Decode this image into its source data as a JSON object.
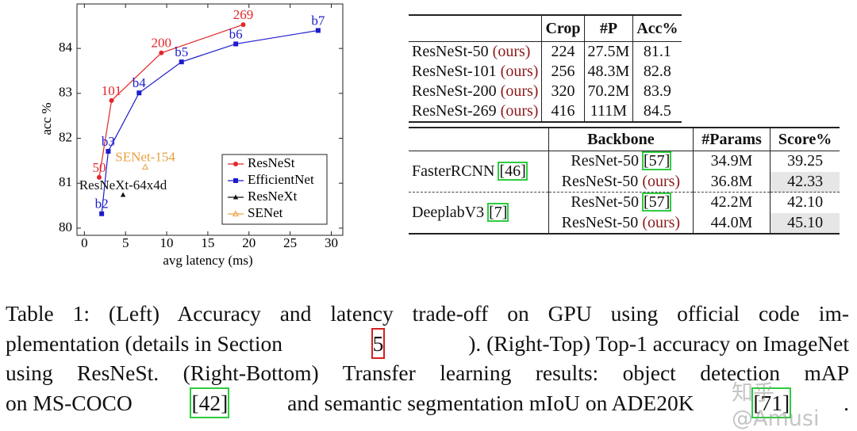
{
  "chart_data": {
    "type": "scatter-line",
    "x_label": "avg latency (ms)",
    "y_label": "acc %",
    "xlim": [
      -0.9,
      31.4
    ],
    "ylim": [
      79.84,
      84.99
    ],
    "xticks": [
      0,
      5,
      10,
      15,
      20,
      25,
      30
    ],
    "yticks": [
      80,
      81,
      82,
      83,
      84
    ],
    "legend": "lower right",
    "series": [
      {
        "name": "ResNeSt",
        "color": "#e3262b",
        "marker": "circle",
        "line": true,
        "x": [
          1.8,
          3.3,
          9.35,
          19.3
        ],
        "values": [
          81.13,
          82.84,
          83.9,
          84.53
        ],
        "point_labels": [
          "50",
          "101",
          "200",
          "269"
        ]
      },
      {
        "name": "EfficientNet",
        "color": "#1c1ccc",
        "marker": "square",
        "line": true,
        "x": [
          2.1,
          2.9,
          6.65,
          11.8,
          18.4,
          28.4
        ],
        "values": [
          80.32,
          81.71,
          83.01,
          83.7,
          84.1,
          84.4
        ],
        "point_labels": [
          "b2",
          "b3",
          "b4",
          "b5",
          "b6",
          "b7"
        ]
      },
      {
        "name": "ResNeXt",
        "color": "#111111",
        "marker": "triangle",
        "line": false,
        "x": [
          4.7
        ],
        "values": [
          80.74
        ],
        "point_labels": [
          "ResNeXt-64x4d"
        ]
      },
      {
        "name": "SENet",
        "color": "#e8a040",
        "marker": "triangle-open",
        "line": false,
        "x": [
          7.4
        ],
        "values": [
          81.36
        ],
        "point_labels": [
          "SENet-154"
        ]
      }
    ]
  },
  "top_table": {
    "header": [
      "Crop",
      "#P",
      "Acc%"
    ],
    "tag": "(ours)",
    "rows": [
      {
        "model": "ResNeSt-50",
        "cells": [
          224,
          "27.5M",
          81.1
        ]
      },
      {
        "model": "ResNeSt-101",
        "cells": [
          256,
          "48.3M",
          82.8
        ]
      },
      {
        "model": "ResNeSt-200",
        "cells": [
          320,
          "70.2M",
          83.9
        ]
      },
      {
        "model": "ResNeSt-269",
        "cells": [
          416,
          "111M",
          84.5
        ]
      }
    ]
  },
  "bottom_table": {
    "header": [
      "Backbone",
      "#Params",
      "Score%"
    ],
    "groups": [
      {
        "method": "FasterRCNN",
        "ref": "[46]",
        "rows": [
          {
            "backbone": "ResNet-50",
            "ref": "[57]",
            "params": "34.9M",
            "score": 39.25
          },
          {
            "backbone": "ResNeSt-50",
            "tag": "(ours)",
            "params": "36.8M",
            "score": 42.33
          }
        ]
      },
      {
        "method": "DeeplabV3",
        "ref": "[7]",
        "rows": [
          {
            "backbone": "ResNet-50",
            "ref": "[57]",
            "params": "42.2M",
            "score": "42.10"
          },
          {
            "backbone": "ResNeSt-50",
            "tag": "(ours)",
            "params": "44.0M",
            "score": "45.10"
          }
        ]
      }
    ]
  },
  "caption": {
    "lines": [
      [
        "Table 1: (Left) Accuracy and latency trade-off on GPU using official code im-"
      ],
      [
        "plementation (details in Section ",
        "5",
        "). (Right-Top) Top-1 accuracy on ImageNet"
      ],
      [
        "using ResNeSt. (Right-Bottom) Transfer learning results: object detection mAP"
      ],
      [
        "on MS-COCO ",
        "[42]",
        " and semantic segmentation mIoU on ADE20K ",
        "[71]",
        "."
      ]
    ]
  },
  "watermark": "知乎 @Amusi"
}
